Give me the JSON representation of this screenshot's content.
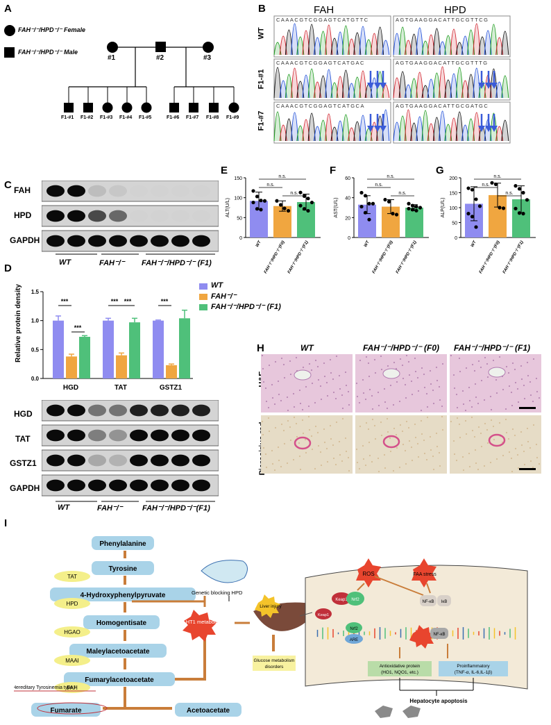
{
  "panels": {
    "A": "A",
    "B": "B",
    "C": "C",
    "D": "D",
    "E": "E",
    "F": "F",
    "G": "G",
    "H": "H",
    "I": "I"
  },
  "pedigree": {
    "legend_female": "FAH⁻/⁻/HPD⁻/⁻ Female",
    "legend_male": "FAH⁻/⁻/HPD⁻/⁻ Male",
    "parents": [
      "#1",
      "#2",
      "#3"
    ],
    "offspring": [
      "F1-#1",
      "F1-#2",
      "F1-#3",
      "F1-#4",
      "F1-#5",
      "F1-#6",
      "F1-#7",
      "F1-#8",
      "F1-#9"
    ]
  },
  "sequencing": {
    "columns": [
      "FAH",
      "HPD"
    ],
    "rows": [
      "WT",
      "F1-#1",
      "F1-#7"
    ],
    "seqs": {
      "WT_FAH": "CAAACGTCGGAGTCATGTTC",
      "WT_HPD": "AGTGAAGGACATTGCGTTCG",
      "F1_1_FAH": "CAAACGTCGGAGTCATGAC",
      "F1_1_HPD": "AGTGAAGGACATTGCGTTTG",
      "F1_7_FAH": "CAAACGTCGGAGTCATGCA",
      "F1_7_HPD": "AGTGAAGGACATTGCGATGC"
    }
  },
  "blotC": {
    "bands": [
      "FAH",
      "HPD",
      "GAPDH"
    ],
    "groups": [
      "WT",
      "FAH⁻/⁻",
      "FAH⁻/⁻/HPD⁻/⁻ (F1)"
    ]
  },
  "panelD": {
    "ylabel": "Relative protein density",
    "legend": [
      "WT",
      "FAH⁻/⁻",
      "FAH⁻/⁻/HPD⁻/⁻ (F1)"
    ],
    "sig": "***",
    "bands": [
      "HGD",
      "TAT",
      "GSTZ1",
      "GAPDH"
    ],
    "groups": [
      "WT",
      "FAH⁻/⁻",
      "FAH⁻/⁻/HPD⁻/⁻(F1)"
    ]
  },
  "panelH": {
    "cols": [
      "WT",
      "FAH⁻/⁻/HPD⁻/⁻ (F0)",
      "FAH⁻/⁻/HPD⁻/⁻ (F1)"
    ],
    "rows": [
      "H&E",
      "Picrosirius red"
    ]
  },
  "ns": "n.s.",
  "chart_data": [
    {
      "type": "bar",
      "id": "D",
      "categories": [
        "HGD",
        "TAT",
        "GSTZ1"
      ],
      "series": [
        {
          "name": "WT",
          "values": [
            1.0,
            1.0,
            1.0
          ],
          "err": [
            0.08,
            0.04,
            0.01
          ],
          "color": "#8f8cf0"
        },
        {
          "name": "FAH-/-",
          "values": [
            0.38,
            0.4,
            0.23
          ],
          "err": [
            0.04,
            0.04,
            0.02
          ],
          "color": "#f0a640"
        },
        {
          "name": "FAH-/-/HPD-/- (F1)",
          "values": [
            0.72,
            0.97,
            1.04
          ],
          "err": [
            0.02,
            0.07,
            0.14
          ],
          "color": "#4fc07a"
        }
      ],
      "ylim": [
        0,
        1.5
      ],
      "yticks": [
        "0.0",
        "0.5",
        "1.0",
        "1.5"
      ]
    },
    {
      "type": "bar",
      "id": "E",
      "ylabel": "ALT(U/L)",
      "categories": [
        "WT",
        "FAH⁻/⁻/HPD⁻/⁻(F0)",
        "FAH⁻/⁻/HPD⁻/⁻(F1)"
      ],
      "values": [
        92,
        79,
        89
      ],
      "err": [
        22,
        13,
        20
      ],
      "points": [
        [
          117,
          103,
          93,
          92,
          88,
          72,
          70
        ],
        [
          92,
          82,
          73,
          67
        ],
        [
          113,
          104,
          98,
          88,
          80,
          72,
          67
        ]
      ],
      "ylim": [
        0,
        150
      ],
      "yticks": [
        "0",
        "50",
        "100",
        "150"
      ]
    },
    {
      "type": "bar",
      "id": "F",
      "ylabel": "AST(U/L)",
      "categories": [
        "WT",
        "FAH⁻/⁻/HPD⁻/⁻(F0)",
        "FAH⁻/⁻/HPD⁻/⁻(F1)"
      ],
      "values": [
        33,
        31,
        30
      ],
      "err": [
        9,
        7,
        3
      ],
      "points": [
        [
          45,
          42,
          34,
          34,
          31,
          25,
          18
        ],
        [
          38,
          36,
          24,
          23
        ],
        [
          34,
          32,
          31,
          30,
          29,
          28,
          27
        ]
      ],
      "ylim": [
        0,
        60
      ],
      "yticks": [
        "0",
        "20",
        "40",
        "60"
      ]
    },
    {
      "type": "bar",
      "id": "G",
      "ylabel": "ALP(U/L)",
      "categories": [
        "WT",
        "FAH⁻/⁻/HPD⁻/⁻(F0)",
        "FAH⁻/⁻/HPD⁻/⁻(F1)"
      ],
      "values": [
        113,
        142,
        128
      ],
      "err": [
        57,
        40,
        45
      ],
      "points": [
        [
          165,
          160,
          128,
          105,
          80,
          70,
          35
        ],
        [
          183,
          178,
          100,
          98
        ],
        [
          173,
          163,
          150,
          126,
          97,
          82,
          80
        ]
      ],
      "ylim": [
        0,
        200
      ],
      "yticks": [
        "0",
        "50",
        "100",
        "150",
        "200"
      ]
    }
  ],
  "pathway": {
    "steps": [
      "Phenylalanine",
      "Tyrosine",
      "4-Hydroxyphenylpyruvate",
      "Homogentisate",
      "Maleylacetoacetate",
      "Fumarylacetoacetate",
      "Fumarate",
      "Acetoacetate"
    ],
    "enzymes": [
      "TAT",
      "HPD",
      "HGAO",
      "MAAI",
      "FAH"
    ],
    "genetic_blocking": "Genetic blocking HPD",
    "ht1": "HT1 metabolites",
    "liver_injury": "Liver injury",
    "glucose": "Glucose metabolism disorders",
    "hered": "Hereditary Tyrosinemia type I",
    "ros": "ROS",
    "faa": "FAA stress",
    "keap1": "Keap1",
    "nrf2": "Nrf2",
    "nfkb": "NF-κB",
    "ikb": "IκB",
    "are": "ARE",
    "antiox": "Antioxidative protein (HO1, NQO1, etc.)",
    "proinf": "Proinflammatory (TNF-α, IL-6,IL-1β)",
    "apoptosis": "Hepatocyte apoptosis"
  }
}
